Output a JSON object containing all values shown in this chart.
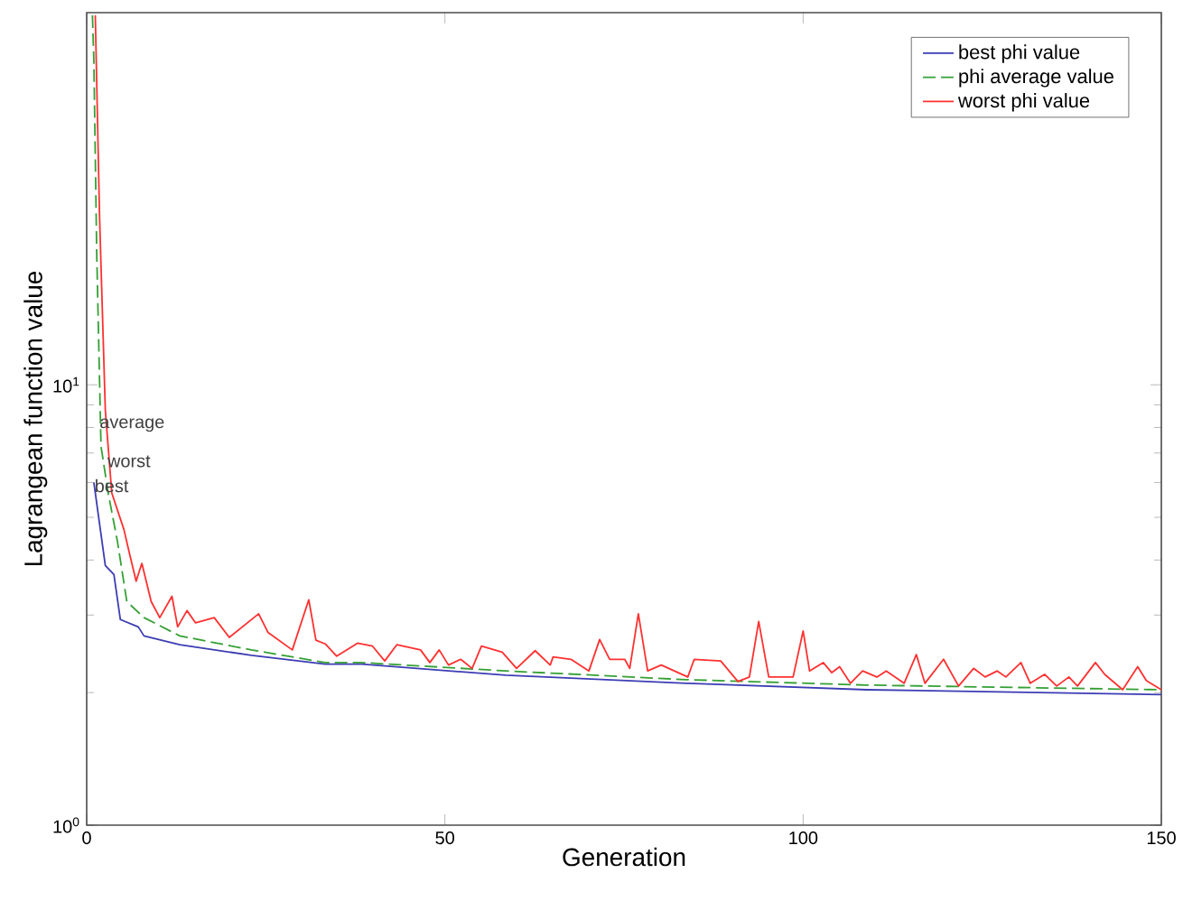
{
  "chart_data": {
    "type": "line",
    "xlabel": "Generation",
    "ylabel": "Lagrangean function value",
    "log": "y",
    "xlim": [
      0,
      150
    ],
    "ylim": [
      1,
      70
    ],
    "xticks": [
      0,
      50,
      100,
      150
    ],
    "yticks": [
      {
        "value": 1,
        "label": "10$^{0}$"
      },
      {
        "value": 10,
        "label": "10$^{1}$"
      }
    ],
    "legend": "top right",
    "series": [
      {
        "name": "best phi value",
        "color": "#3c3cb4",
        "line_style": "solid",
        "x": [
          1,
          2.6,
          3.8,
          4.7,
          7.2,
          8,
          13,
          23,
          33.3,
          38.4,
          58.5,
          83.7,
          108.9,
          150
        ],
        "values": [
          6.0,
          3.89,
          3.71,
          2.93,
          2.82,
          2.69,
          2.57,
          2.43,
          2.32,
          2.32,
          2.19,
          2.1,
          2.03,
          1.98
        ]
      },
      {
        "name": "phi average value",
        "color": "#34a034",
        "line_style": "dashed",
        "x": [
          0.8,
          1,
          1.4,
          2,
          3,
          4.3,
          5.6,
          8,
          13,
          23,
          33.3,
          38.4,
          58.5,
          83.7,
          108.9,
          150
        ],
        "values": [
          69,
          54.6,
          19.9,
          7.25,
          5.68,
          4.4,
          3.22,
          2.96,
          2.69,
          2.5,
          2.34,
          2.34,
          2.24,
          2.14,
          2.08,
          2.03
        ]
      },
      {
        "name": "worst phi value",
        "color": "#ff3030",
        "line_style": "solid",
        "x": [
          1.2,
          1.8,
          2.6,
          3.5,
          5.2,
          6,
          6.9,
          7.7,
          9,
          10.2,
          11.9,
          12.7,
          14,
          15.2,
          17.8,
          19.9,
          24,
          25.3,
          28.7,
          31,
          32,
          33.3,
          34.9,
          37.8,
          39.9,
          41.6,
          43.3,
          46.6,
          47.9,
          49.2,
          50.5,
          52.2,
          53.8,
          55.1,
          58,
          60,
          62.6,
          64.7,
          65.1,
          67.6,
          70.1,
          71.6,
          73,
          75.1,
          75.8,
          77,
          78.3,
          80.2,
          83.9,
          84.8,
          88.5,
          90.9,
          92.5,
          93.8,
          95.2,
          98.6,
          100,
          100.9,
          102.8,
          104,
          105.1,
          106.6,
          108.3,
          110.3,
          111.6,
          114.1,
          115.8,
          117,
          119.6,
          121.7,
          123.8,
          125.4,
          127.1,
          128.3,
          130.4,
          131.7,
          133.7,
          135.4,
          137.1,
          138.3,
          140.8,
          142.1,
          144.6,
          146.7,
          147.9,
          150
        ],
        "values": [
          69,
          24,
          8.76,
          5.68,
          4.69,
          4.12,
          3.58,
          3.93,
          3.22,
          2.96,
          3.31,
          2.82,
          3.07,
          2.88,
          2.96,
          2.67,
          3.02,
          2.74,
          2.5,
          3.25,
          2.63,
          2.58,
          2.42,
          2.59,
          2.55,
          2.36,
          2.57,
          2.5,
          2.34,
          2.5,
          2.31,
          2.38,
          2.27,
          2.55,
          2.47,
          2.27,
          2.49,
          2.31,
          2.41,
          2.38,
          2.24,
          2.64,
          2.38,
          2.38,
          2.27,
          3.02,
          2.24,
          2.31,
          2.17,
          2.38,
          2.36,
          2.12,
          2.17,
          2.9,
          2.17,
          2.17,
          2.76,
          2.24,
          2.34,
          2.22,
          2.29,
          2.1,
          2.24,
          2.17,
          2.24,
          2.1,
          2.44,
          2.1,
          2.38,
          2.07,
          2.27,
          2.17,
          2.24,
          2.17,
          2.34,
          2.1,
          2.2,
          2.07,
          2.17,
          2.07,
          2.34,
          2.2,
          2.03,
          2.29,
          2.13,
          2.03
        ]
      }
    ],
    "annotations": [
      {
        "text": "average",
        "x": 1.5,
        "y": 8.1
      },
      {
        "text": "worst",
        "x": 2.6,
        "y": 6.7
      },
      {
        "text": "best",
        "x": 0.8,
        "y": 5.9
      }
    ]
  }
}
